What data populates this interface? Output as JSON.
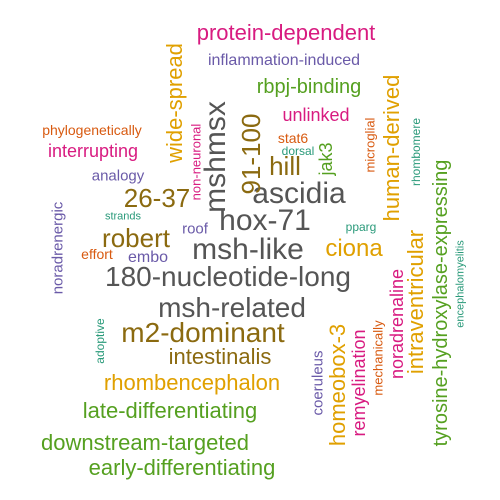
{
  "colors": {
    "gray": "#555555",
    "orange": "#e0a000",
    "green": "#55a020",
    "brown": "#8b6a10",
    "magenta": "#d81b80",
    "purple": "#6a5aa8",
    "teal": "#2a9a7a",
    "red_orange": "#d85a10"
  },
  "words": [
    {
      "text": "protein-dependent",
      "color": "magenta"
    },
    {
      "text": "inflammation-induced",
      "color": "purple"
    },
    {
      "text": "rbpj-binding",
      "color": "green"
    },
    {
      "text": "unlinked",
      "color": "magenta"
    },
    {
      "text": "phylogenetically",
      "color": "red_orange"
    },
    {
      "text": "interrupting",
      "color": "magenta"
    },
    {
      "text": "analogy",
      "color": "purple"
    },
    {
      "text": "26-37",
      "color": "brown"
    },
    {
      "text": "ascidia",
      "color": "gray"
    },
    {
      "text": "hill",
      "color": "brown"
    },
    {
      "text": "hox-71",
      "color": "gray"
    },
    {
      "text": "robert",
      "color": "brown"
    },
    {
      "text": "roof",
      "color": "purple"
    },
    {
      "text": "strands",
      "color": "teal"
    },
    {
      "text": "stat6",
      "color": "red_orange"
    },
    {
      "text": "dorsal",
      "color": "teal"
    },
    {
      "text": "msh-like",
      "color": "gray"
    },
    {
      "text": "ciona",
      "color": "orange"
    },
    {
      "text": "effort",
      "color": "red_orange"
    },
    {
      "text": "embo",
      "color": "purple"
    },
    {
      "text": "pparg",
      "color": "teal"
    },
    {
      "text": "180-nucleotide-long",
      "color": "gray"
    },
    {
      "text": "msh-related",
      "color": "gray"
    },
    {
      "text": "m2-dominant",
      "color": "brown"
    },
    {
      "text": "intestinalis",
      "color": "brown"
    },
    {
      "text": "rhombencephalon",
      "color": "orange"
    },
    {
      "text": "late-differentiating",
      "color": "green"
    },
    {
      "text": "downstream-targeted",
      "color": "green"
    },
    {
      "text": "early-differentiating",
      "color": "green"
    },
    {
      "text": "wide-spread",
      "color": "orange"
    },
    {
      "text": "mshmsx",
      "color": "gray"
    },
    {
      "text": "non-neuronal",
      "color": "magenta"
    },
    {
      "text": "91-100",
      "color": "brown"
    },
    {
      "text": "jak3",
      "color": "green"
    },
    {
      "text": "microglial",
      "color": "red_orange"
    },
    {
      "text": "human-derived",
      "color": "orange"
    },
    {
      "text": "rhombomere",
      "color": "teal"
    },
    {
      "text": "tyrosine-hydroxylase-expressing",
      "color": "green"
    },
    {
      "text": "intraventricular",
      "color": "orange"
    },
    {
      "text": "encephalomyelitis",
      "color": "teal"
    },
    {
      "text": "noradrenergic",
      "color": "purple"
    },
    {
      "text": "adoptive",
      "color": "teal"
    },
    {
      "text": "homeobox-3",
      "color": "orange"
    },
    {
      "text": "coeruleus",
      "color": "purple"
    },
    {
      "text": "remyelination",
      "color": "magenta"
    },
    {
      "text": "mechanically",
      "color": "red_orange"
    },
    {
      "text": "noradrenaline",
      "color": "magenta"
    }
  ]
}
